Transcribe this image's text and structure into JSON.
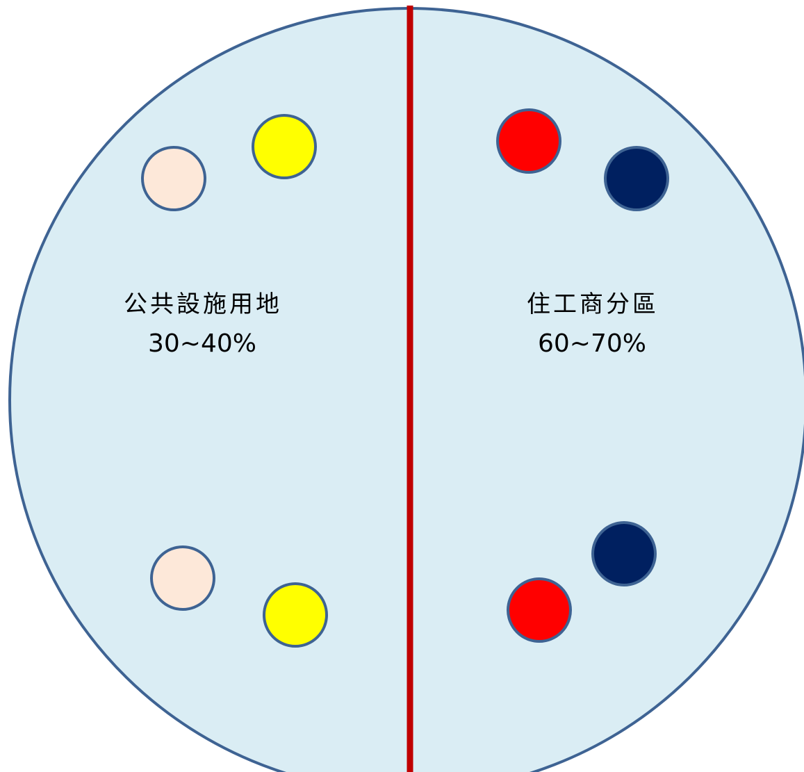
{
  "colors": {
    "circle_fill": "#daedf4",
    "circle_stroke": "#3e6393",
    "divider": "#c00000",
    "dot_stroke": "#3e6393",
    "peach": "#fde8d9",
    "yellow": "#ffff00",
    "red": "#ff0000",
    "navy": "#002060"
  },
  "left_zone": {
    "label": "公共設施用地",
    "percent": "30~40%",
    "dots": [
      "peach",
      "yellow",
      "peach",
      "yellow"
    ]
  },
  "right_zone": {
    "label": "住工商分區",
    "percent": "60~70%",
    "dots": [
      "red",
      "navy",
      "navy",
      "red"
    ]
  }
}
